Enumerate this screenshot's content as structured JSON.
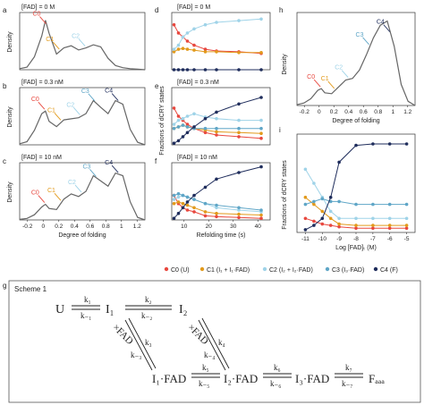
{
  "panel_letters": [
    "a",
    "b",
    "c",
    "d",
    "e",
    "f",
    "g",
    "h",
    "i"
  ],
  "density_conditions": [
    "[FAD] = 0 M",
    "[FAD] = 0.3 nM",
    "[FAD] = 10 nM"
  ],
  "kinetic_conditions": [
    "[FAD] = 0 M",
    "[FAD] = 0.3 nM",
    "[FAD] = 10 nM"
  ],
  "density_ylabel": "Density",
  "fraction_ylabel": "Fractions of dCRY states",
  "density_xlabel": "Degree of folding",
  "time_xlabel": "Refolding time (s)",
  "fad_xlabel": "Log [FAD] (M)",
  "state_labels": [
    "C0",
    "C1",
    "C2",
    "C3",
    "C4"
  ],
  "colors": {
    "C0": "#e8483f",
    "C1": "#e29a1c",
    "C2": "#9fd3e8",
    "C3": "#5fa6c7",
    "C4": "#1f2d5c",
    "curve": "#666666"
  },
  "legend": [
    {
      "key": "C0",
      "label": "C0 (U)"
    },
    {
      "key": "C1",
      "label": "C1 (I₁ + I₁·FAD)"
    },
    {
      "key": "C2",
      "label": "C2 (I₂ + I₂·FAD)"
    },
    {
      "key": "C3",
      "label": "C3 (I₃·FAD)"
    },
    {
      "key": "C4",
      "label": "C4 (F)"
    }
  ],
  "scheme": {
    "title": "Scheme 1",
    "species": [
      "U",
      "I₁",
      "I₂",
      "×FAD",
      "I₁·FAD",
      "I₂·FAD",
      "I₃·FAD",
      "Fₐₐₐ"
    ],
    "rates": [
      "k₁",
      "k₋₁",
      "k₂",
      "k₋₂",
      "k₃",
      "k₋₃",
      "k₄",
      "k₋₄",
      "k₅",
      "k₋₅",
      "k₆",
      "k₋₆",
      "k₇",
      "k₋₇"
    ]
  },
  "chart_data": [
    {
      "panel": "a",
      "type": "line",
      "title": "[FAD] = 0 M",
      "xlabel": "",
      "ylabel": "Density",
      "xlim": [
        -0.35,
        1.35
      ],
      "xticks": [],
      "x": [
        -0.35,
        -0.25,
        -0.15,
        -0.05,
        0.0,
        0.05,
        0.15,
        0.25,
        0.35,
        0.45,
        0.55,
        0.65,
        0.75,
        0.85,
        0.95,
        1.05,
        1.15,
        1.25,
        1.35
      ],
      "values": [
        0.02,
        0.05,
        0.25,
        0.65,
        0.95,
        0.7,
        0.3,
        0.42,
        0.46,
        0.38,
        0.42,
        0.48,
        0.44,
        0.22,
        0.08,
        0.04,
        0.02,
        0.01,
        0.0
      ],
      "annotations": [
        {
          "text": "C0",
          "x": 0.02,
          "color": "#e8483f"
        },
        {
          "text": "C1",
          "x": 0.2,
          "color": "#e29a1c"
        },
        {
          "text": "C2",
          "x": 0.55,
          "color": "#9fd3e8"
        }
      ]
    },
    {
      "panel": "b",
      "type": "line",
      "title": "[FAD] = 0.3 nM",
      "xlabel": "",
      "ylabel": "Density",
      "xlim": [
        -0.35,
        1.35
      ],
      "xticks": [],
      "x": [
        -0.35,
        -0.25,
        -0.15,
        -0.05,
        0.0,
        0.05,
        0.15,
        0.25,
        0.35,
        0.45,
        0.55,
        0.65,
        0.75,
        0.85,
        0.95,
        1.05,
        1.15,
        1.25,
        1.35
      ],
      "values": [
        0.02,
        0.06,
        0.28,
        0.6,
        0.65,
        0.45,
        0.35,
        0.48,
        0.5,
        0.52,
        0.6,
        0.85,
        0.72,
        0.6,
        0.85,
        0.78,
        0.3,
        0.05,
        0.0
      ],
      "annotations": [
        {
          "text": "C0",
          "x": 0.0,
          "color": "#e8483f"
        },
        {
          "text": "C1",
          "x": 0.22,
          "color": "#e29a1c"
        },
        {
          "text": "C2",
          "x": 0.48,
          "color": "#9fd3e8"
        },
        {
          "text": "C3",
          "x": 0.68,
          "color": "#5fa6c7"
        },
        {
          "text": "C4",
          "x": 1.0,
          "color": "#1f2d5c"
        }
      ]
    },
    {
      "panel": "c",
      "type": "line",
      "title": "[FAD] = 10 nM",
      "xlabel": "Degree of folding",
      "ylabel": "Density",
      "xlim": [
        -0.35,
        1.35
      ],
      "xticks": [
        "-0.2",
        "0",
        "0.2",
        "0.4",
        "0.6",
        "0.8",
        "1",
        "1.2"
      ],
      "x": [
        -0.35,
        -0.25,
        -0.15,
        -0.05,
        0.0,
        0.05,
        0.15,
        0.25,
        0.35,
        0.45,
        0.55,
        0.65,
        0.75,
        0.85,
        0.95,
        1.05,
        1.15,
        1.25,
        1.35
      ],
      "values": [
        0.01,
        0.03,
        0.1,
        0.25,
        0.3,
        0.22,
        0.2,
        0.4,
        0.5,
        0.45,
        0.55,
        0.85,
        0.75,
        0.65,
        0.9,
        0.85,
        0.35,
        0.05,
        0.0
      ],
      "annotations": [
        {
          "text": "C0",
          "x": 0.0,
          "color": "#e8483f"
        },
        {
          "text": "C1",
          "x": 0.22,
          "color": "#e29a1c"
        },
        {
          "text": "C2",
          "x": 0.5,
          "color": "#9fd3e8"
        },
        {
          "text": "C3",
          "x": 0.7,
          "color": "#5fa6c7"
        },
        {
          "text": "C4",
          "x": 1.0,
          "color": "#1f2d5c"
        }
      ]
    },
    {
      "panel": "d",
      "type": "scatter",
      "title": "[FAD] = 0 M",
      "xlabel": "",
      "ylabel": "",
      "xlim": [
        0,
        44
      ],
      "ylim": [
        0,
        0.7
      ],
      "xticks": [],
      "series": [
        {
          "key": "C0",
          "x": [
            1,
            3,
            5,
            7,
            10,
            15,
            20,
            30,
            40
          ],
          "values": [
            0.55,
            0.45,
            0.4,
            0.35,
            0.3,
            0.25,
            0.23,
            0.22,
            0.2
          ]
        },
        {
          "key": "C1",
          "x": [
            1,
            3,
            5,
            7,
            10,
            15,
            20,
            30,
            40
          ],
          "values": [
            0.22,
            0.25,
            0.26,
            0.25,
            0.24,
            0.22,
            0.22,
            0.21,
            0.21
          ]
        },
        {
          "key": "C2",
          "x": [
            1,
            3,
            5,
            7,
            10,
            15,
            20,
            30,
            40
          ],
          "values": [
            0.25,
            0.3,
            0.4,
            0.45,
            0.5,
            0.55,
            0.58,
            0.6,
            0.62
          ]
        },
        {
          "key": "C4",
          "x": [
            1,
            3,
            5,
            7,
            10,
            15,
            20,
            30,
            40
          ],
          "values": [
            0.0,
            0.0,
            0.0,
            0.0,
            0.0,
            0.0,
            0.0,
            0.0,
            0.0
          ]
        }
      ]
    },
    {
      "panel": "e",
      "type": "scatter",
      "title": "[FAD] = 0.3 nM",
      "xlabel": "",
      "ylabel": "Fractions of dCRY states",
      "xlim": [
        0,
        44
      ],
      "ylim": [
        0,
        0.7
      ],
      "xticks": [],
      "series": [
        {
          "key": "C0",
          "x": [
            1,
            3,
            5,
            7,
            10,
            15,
            20,
            30,
            40
          ],
          "values": [
            0.45,
            0.35,
            0.3,
            0.25,
            0.2,
            0.15,
            0.12,
            0.1,
            0.08
          ]
        },
        {
          "key": "C1",
          "x": [
            1,
            3,
            5,
            7,
            10,
            15,
            20,
            30,
            40
          ],
          "values": [
            0.2,
            0.22,
            0.24,
            0.22,
            0.2,
            0.18,
            0.16,
            0.15,
            0.14
          ]
        },
        {
          "key": "C2",
          "x": [
            1,
            3,
            5,
            7,
            10,
            15,
            20,
            30,
            40
          ],
          "values": [
            0.25,
            0.3,
            0.32,
            0.35,
            0.38,
            0.34,
            0.32,
            0.3,
            0.3
          ]
        },
        {
          "key": "C3",
          "x": [
            1,
            3,
            5,
            7,
            10,
            15,
            20,
            30,
            40
          ],
          "values": [
            0.2,
            0.22,
            0.24,
            0.22,
            0.2,
            0.2,
            0.2,
            0.2,
            0.2
          ]
        },
        {
          "key": "C4",
          "x": [
            1,
            3,
            5,
            7,
            10,
            15,
            20,
            30,
            40
          ],
          "values": [
            0.02,
            0.05,
            0.1,
            0.15,
            0.22,
            0.32,
            0.4,
            0.5,
            0.58
          ]
        }
      ]
    },
    {
      "panel": "f",
      "type": "scatter",
      "title": "[FAD] = 10 nM",
      "xlabel": "Refolding time (s)",
      "ylabel": "",
      "xlim": [
        0,
        44
      ],
      "ylim": [
        0,
        0.7
      ],
      "xticks": [
        "10",
        "20",
        "30",
        "40"
      ],
      "series": [
        {
          "key": "C0",
          "x": [
            1,
            3,
            5,
            7,
            10,
            15,
            20,
            30,
            40
          ],
          "values": [
            0.3,
            0.2,
            0.15,
            0.12,
            0.1,
            0.05,
            0.04,
            0.03,
            0.02
          ]
        },
        {
          "key": "C1",
          "x": [
            1,
            3,
            5,
            7,
            10,
            15,
            20,
            30,
            40
          ],
          "values": [
            0.2,
            0.22,
            0.2,
            0.18,
            0.15,
            0.1,
            0.08,
            0.07,
            0.06
          ]
        },
        {
          "key": "C2",
          "x": [
            1,
            3,
            5,
            7,
            10,
            15,
            20,
            30,
            40
          ],
          "values": [
            0.25,
            0.28,
            0.3,
            0.28,
            0.25,
            0.2,
            0.15,
            0.12,
            0.1
          ]
        },
        {
          "key": "C3",
          "x": [
            1,
            3,
            5,
            7,
            10,
            15,
            20,
            30,
            40
          ],
          "values": [
            0.3,
            0.32,
            0.3,
            0.28,
            0.25,
            0.2,
            0.18,
            0.15,
            0.12
          ]
        },
        {
          "key": "C4",
          "x": [
            1,
            3,
            5,
            7,
            10,
            15,
            20,
            30,
            40
          ],
          "values": [
            0.02,
            0.08,
            0.15,
            0.22,
            0.3,
            0.4,
            0.5,
            0.58,
            0.65
          ]
        }
      ]
    },
    {
      "panel": "h",
      "type": "line",
      "title": "",
      "xlabel": "Degree of folding",
      "ylabel": "Density",
      "xlim": [
        -0.35,
        1.35
      ],
      "xticks": [
        "-0.2",
        "0",
        "0.2",
        "0.4",
        "0.6",
        "0.8",
        "1",
        "1.2"
      ],
      "x": [
        -0.35,
        -0.25,
        -0.15,
        -0.05,
        0.0,
        0.05,
        0.15,
        0.25,
        0.35,
        0.45,
        0.55,
        0.65,
        0.75,
        0.85,
        0.95,
        1.05,
        1.15,
        1.25,
        1.35
      ],
      "values": [
        0.01,
        0.03,
        0.08,
        0.18,
        0.2,
        0.15,
        0.14,
        0.22,
        0.3,
        0.32,
        0.42,
        0.6,
        0.8,
        0.95,
        1.0,
        0.7,
        0.25,
        0.05,
        0.0
      ],
      "annotations": [
        {
          "text": "C0",
          "x": 0.0,
          "color": "#e8483f"
        },
        {
          "text": "C1",
          "x": 0.2,
          "color": "#e29a1c"
        },
        {
          "text": "C2",
          "x": 0.4,
          "color": "#9fd3e8"
        },
        {
          "text": "C3",
          "x": 0.7,
          "color": "#5fa6c7"
        },
        {
          "text": "C4",
          "x": 1.0,
          "color": "#1f2d5c"
        }
      ]
    },
    {
      "panel": "i",
      "type": "scatter",
      "title": "",
      "xlabel": "Log [FAD]ₜ (M)",
      "ylabel": "Fractions of dCRY states",
      "xlim": [
        -11.5,
        -4.5
      ],
      "ylim": [
        0,
        0.7
      ],
      "xticks": [
        "-11",
        "-10",
        "-9",
        "-8",
        "-7",
        "-6",
        "-5"
      ],
      "series": [
        {
          "key": "C0",
          "x": [
            -11,
            -10.5,
            -10,
            -9.5,
            -9,
            -8,
            -7,
            -6,
            -5
          ],
          "values": [
            0.1,
            0.08,
            0.06,
            0.05,
            0.04,
            0.03,
            0.03,
            0.03,
            0.03
          ]
        },
        {
          "key": "C1",
          "x": [
            -11,
            -10.5,
            -10,
            -9.5,
            -9,
            -8,
            -7,
            -6,
            -5
          ],
          "values": [
            0.25,
            0.2,
            0.15,
            0.1,
            0.06,
            0.05,
            0.05,
            0.05,
            0.05
          ]
        },
        {
          "key": "C2",
          "x": [
            -11,
            -10.5,
            -10,
            -9.5,
            -9,
            -8,
            -7,
            -6,
            -5
          ],
          "values": [
            0.45,
            0.35,
            0.25,
            0.15,
            0.1,
            0.1,
            0.1,
            0.1,
            0.1
          ]
        },
        {
          "key": "C3",
          "x": [
            -11,
            -10.5,
            -10,
            -9.5,
            -9,
            -8,
            -7,
            -6,
            -5
          ],
          "values": [
            0.2,
            0.22,
            0.24,
            0.22,
            0.22,
            0.2,
            0.2,
            0.2,
            0.2
          ]
        },
        {
          "key": "C4",
          "x": [
            -11,
            -10.5,
            -10,
            -9.5,
            -9,
            -8,
            -7,
            -6,
            -5
          ],
          "values": [
            0.02,
            0.05,
            0.1,
            0.25,
            0.5,
            0.62,
            0.63,
            0.63,
            0.63
          ]
        }
      ]
    }
  ]
}
